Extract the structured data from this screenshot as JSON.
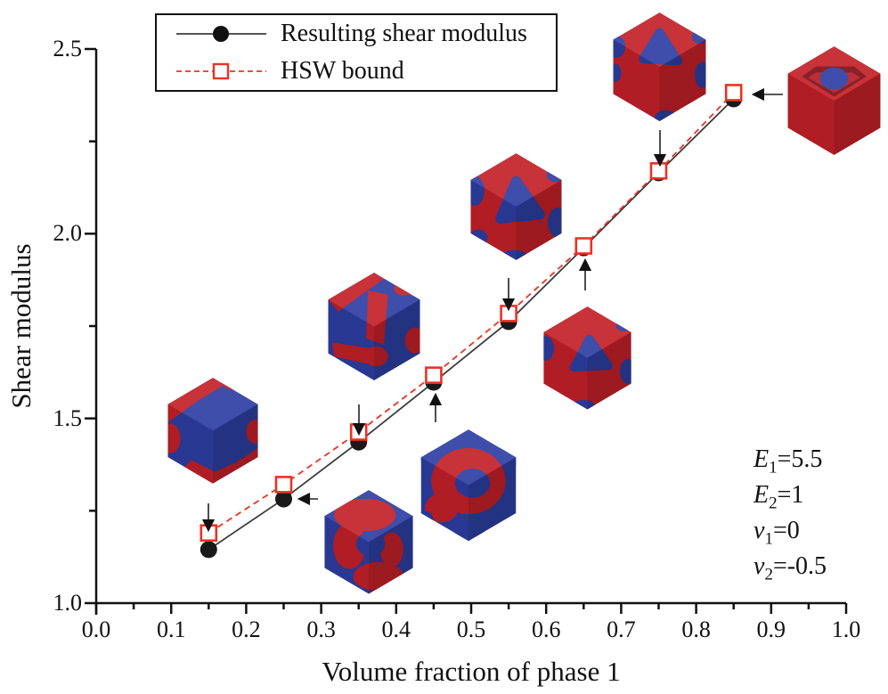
{
  "chart_data": {
    "type": "line",
    "xlabel": "Volume fraction of phase 1",
    "ylabel": "Shear modulus",
    "xlim": [
      0.0,
      1.0
    ],
    "ylim": [
      1.0,
      2.5
    ],
    "x_ticks": [
      "0.0",
      "0.1",
      "0.2",
      "0.3",
      "0.4",
      "0.5",
      "0.6",
      "0.7",
      "0.8",
      "0.9",
      "1.0"
    ],
    "y_ticks": [
      "1.0",
      "1.5",
      "2.0",
      "2.5"
    ],
    "x_minor_step": 0.05,
    "y_minor_step": 0.25,
    "grid": false,
    "legend_position": "top-left",
    "x": [
      0.15,
      0.25,
      0.35,
      0.45,
      0.55,
      0.65,
      0.75,
      0.85
    ],
    "series": [
      {
        "name": "Resulting shear modulus",
        "marker": "filled-circle",
        "line_style": "solid",
        "color": "#1a1a1a",
        "values": [
          1.145,
          1.282,
          1.436,
          1.598,
          1.762,
          1.962,
          2.165,
          2.365
        ]
      },
      {
        "name": "HSW bound",
        "marker": "open-square",
        "line_style": "dashed",
        "color": "#ed3125",
        "values": [
          1.19,
          1.321,
          1.463,
          1.617,
          1.784,
          1.967,
          2.17,
          2.382
        ]
      }
    ],
    "insets": [
      {
        "id": "inset-1",
        "volume_fraction": 0.15,
        "arrow": "down",
        "description": "voxel microstructure cube, mostly blue phase 2 with red edge patches"
      },
      {
        "id": "inset-2",
        "volume_fraction": 0.25,
        "arrow": "left",
        "description": "voxel microstructure cube, blue with winding red band"
      },
      {
        "id": "inset-3",
        "volume_fraction": 0.35,
        "arrow": "down",
        "description": "voxel microstructure cube, blue with red network"
      },
      {
        "id": "inset-4",
        "volume_fraction": 0.45,
        "arrow": "up",
        "description": "voxel microstructure cube, red ring around blue core"
      },
      {
        "id": "inset-5",
        "volume_fraction": 0.55,
        "arrow": "down",
        "description": "voxel microstructure cube, red with central blue blob"
      },
      {
        "id": "inset-6",
        "volume_fraction": 0.65,
        "arrow": "up",
        "description": "voxel microstructure cube, red with smaller blue blobs"
      },
      {
        "id": "inset-7",
        "volume_fraction": 0.75,
        "arrow": "down",
        "description": "voxel microstructure cube, mostly red with blue pockets"
      },
      {
        "id": "inset-8",
        "volume_fraction": 0.85,
        "arrow": "left",
        "description": "solid red cube with corner notch revealing blue inclusion"
      }
    ],
    "colors": {
      "phase1_red": "#c42129",
      "phase2_blue": "#2e3fa3",
      "hsw_line": "#ed3125",
      "result_line": "#3c3c3c",
      "axis": "#111111"
    }
  },
  "annotations": [
    {
      "sym": "E",
      "sub": "1",
      "val": "=5.5"
    },
    {
      "sym": "E",
      "sub": "2",
      "val": "=1"
    },
    {
      "sym": "v",
      "sub": "1",
      "val": "=0"
    },
    {
      "sym": "v",
      "sub": "2",
      "val": "=-0.5"
    }
  ]
}
